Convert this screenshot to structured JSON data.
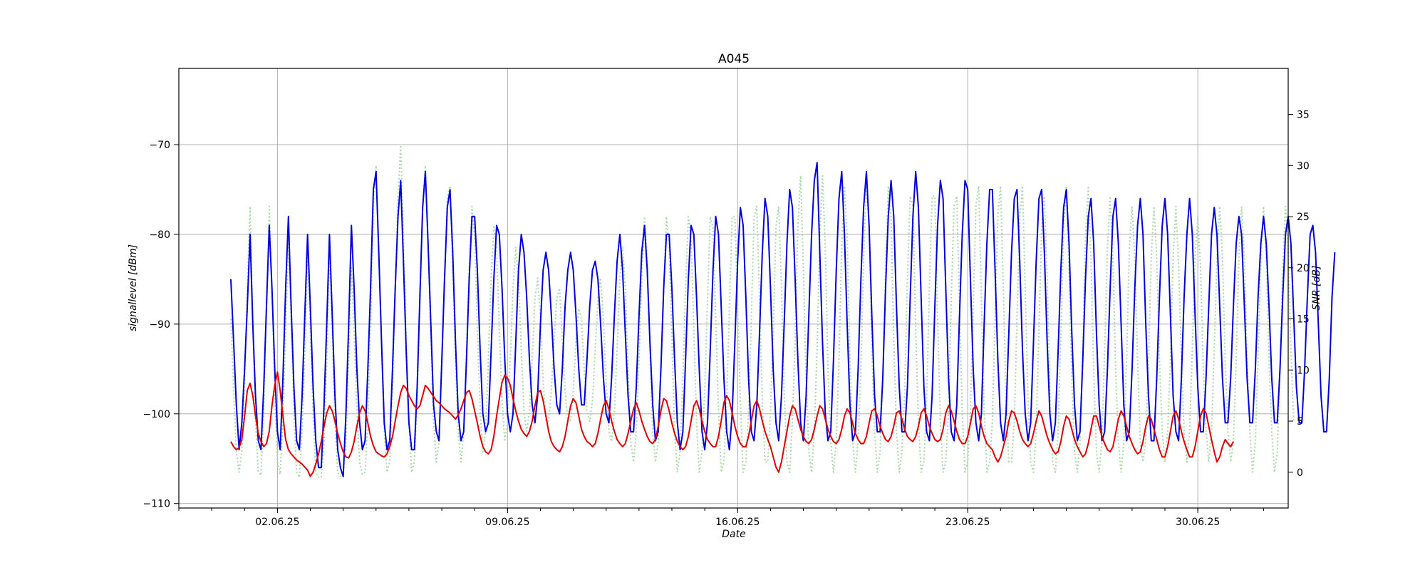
{
  "chart_data": {
    "type": "line",
    "title": "A045",
    "xlabel": "Date",
    "ylabel_left": "signallevel [dBm]",
    "ylabel_right": "SNR [dB]",
    "x_range": [
      "2025-05-30T00:00",
      "2025-07-02T18:00"
    ],
    "x_ticks": [
      "02.06.25",
      "09.06.25",
      "16.06.25",
      "23.06.25",
      "30.06.25"
    ],
    "ylim_left": [
      -110.5,
      -61.5
    ],
    "ylim_right": [
      -3.5,
      39.5
    ],
    "yticks_left": [
      -110,
      -100,
      -90,
      -80,
      -70
    ],
    "yticks_right": [
      0,
      5,
      10,
      15,
      20,
      25,
      30,
      35
    ],
    "grid": true,
    "legend": "none",
    "series": [
      {
        "axis": "left",
        "color": "#0000dd",
        "style": "solid",
        "sample_interval_hours": 2,
        "start": "2025-05-31T14:00",
        "values": [
          -85,
          -92,
          -99,
          -104,
          -101,
          -95,
          -88,
          -80,
          -90,
          -98,
          -103,
          -104,
          -97,
          -88,
          -79,
          -86,
          -95,
          -102,
          -104,
          -96,
          -86,
          -78,
          -88,
          -97,
          -103,
          -104,
          -98,
          -89,
          -80,
          -88,
          -97,
          -103,
          -106,
          -106,
          -99,
          -90,
          -80,
          -89,
          -98,
          -104,
          -106,
          -107,
          -100,
          -90,
          -79,
          -86,
          -95,
          -101,
          -104,
          -103,
          -95,
          -86,
          -75,
          -73,
          -82,
          -92,
          -101,
          -104,
          -103,
          -95,
          -86,
          -78,
          -74,
          -83,
          -93,
          -101,
          -104,
          -104,
          -97,
          -87,
          -77,
          -73,
          -81,
          -90,
          -99,
          -102,
          -103,
          -94,
          -85,
          -77,
          -75,
          -82,
          -92,
          -100,
          -103,
          -102,
          -94,
          -85,
          -78,
          -78,
          -84,
          -93,
          -100,
          -102,
          -101,
          -93,
          -85,
          -79,
          -80,
          -86,
          -94,
          -100,
          -102,
          -100,
          -92,
          -84,
          -80,
          -82,
          -87,
          -94,
          -99,
          -101,
          -98,
          -90,
          -84,
          -82,
          -84,
          -89,
          -95,
          -99,
          -100,
          -95,
          -88,
          -84,
          -82,
          -84,
          -89,
          -95,
          -99,
          -99,
          -94,
          -88,
          -84,
          -83,
          -85,
          -90,
          -96,
          -100,
          -101,
          -96,
          -89,
          -83,
          -80,
          -84,
          -91,
          -98,
          -102,
          -102,
          -97,
          -89,
          -82,
          -79,
          -84,
          -92,
          -99,
          -103,
          -102,
          -95,
          -86,
          -80,
          -80,
          -86,
          -94,
          -101,
          -104,
          -102,
          -94,
          -85,
          -79,
          -80,
          -87,
          -95,
          -102,
          -104,
          -101,
          -93,
          -84,
          -78,
          -80,
          -88,
          -96,
          -102,
          -104,
          -100,
          -92,
          -83,
          -77,
          -79,
          -87,
          -96,
          -102,
          -103,
          -99,
          -91,
          -82,
          -76,
          -78,
          -86,
          -95,
          -101,
          -103,
          -98,
          -90,
          -81,
          -75,
          -77,
          -85,
          -94,
          -101,
          -103,
          -98,
          -89,
          -80,
          -74,
          -72,
          -82,
          -92,
          -100,
          -103,
          -102,
          -94,
          -84,
          -76,
          -73,
          -80,
          -90,
          -99,
          -103,
          -102,
          -95,
          -85,
          -77,
          -73,
          -79,
          -89,
          -98,
          -102,
          -102,
          -96,
          -86,
          -78,
          -74,
          -78,
          -88,
          -97,
          -102,
          -102,
          -97,
          -87,
          -78,
          -73,
          -77,
          -87,
          -97,
          -102,
          -103,
          -98,
          -88,
          -79,
          -74,
          -76,
          -86,
          -96,
          -102,
          -103,
          -99,
          -89,
          -80,
          -74,
          -75,
          -85,
          -95,
          -101,
          -103,
          -100,
          -90,
          -81,
          -75,
          -75,
          -84,
          -94,
          -101,
          -103,
          -100,
          -91,
          -82,
          -76,
          -75,
          -83,
          -93,
          -100,
          -103,
          -101,
          -92,
          -83,
          -76,
          -75,
          -82,
          -92,
          -100,
          -103,
          -101,
          -93,
          -84,
          -77,
          -75,
          -81,
          -91,
          -99,
          -103,
          -102,
          -94,
          -85,
          -78,
          -76,
          -81,
          -91,
          -99,
          -103,
          -102,
          -95,
          -86,
          -78,
          -76,
          -81,
          -90,
          -99,
          -103,
          -102,
          -95,
          -86,
          -79,
          -76,
          -80,
          -90,
          -98,
          -103,
          -103,
          -96,
          -87,
          -79,
          -76,
          -80,
          -89,
          -98,
          -102,
          -103,
          -96,
          -87,
          -80,
          -76,
          -80,
          -89,
          -97,
          -102,
          -102,
          -96,
          -88,
          -80,
          -77,
          -80,
          -88,
          -96,
          -101,
          -101,
          -96,
          -88,
          -81,
          -78,
          -80,
          -88,
          -96,
          -101,
          -101,
          -95,
          -87,
          -81,
          -78,
          -81,
          -88,
          -96,
          -101,
          -101,
          -95,
          -87,
          -80,
          -78,
          -81,
          -89,
          -97,
          -101,
          -101,
          -95,
          -87,
          -80,
          -79,
          -82,
          -90,
          -98,
          -102,
          -102,
          -96,
          -87,
          -82
        ]
      },
      {
        "axis": "right",
        "color": "#e00000",
        "style": "solid",
        "sample_interval_hours": 2,
        "start": "2025-05-31T14:00",
        "values": [
          3.0,
          2.5,
          2.2,
          2.4,
          3.2,
          5.5,
          8.0,
          8.7,
          7.5,
          5.5,
          3.8,
          3.0,
          2.5,
          2.8,
          4.0,
          6.5,
          8.5,
          9.8,
          8.0,
          5.5,
          3.2,
          2.2,
          1.8,
          1.5,
          1.2,
          1.0,
          0.8,
          0.5,
          0.2,
          -0.4,
          0.0,
          0.8,
          1.8,
          3.0,
          4.5,
          5.8,
          6.5,
          6.0,
          5.0,
          3.8,
          2.8,
          2.0,
          1.5,
          1.4,
          2.0,
          3.0,
          4.5,
          5.8,
          6.5,
          6.0,
          4.8,
          3.5,
          2.6,
          2.0,
          1.8,
          1.6,
          1.5,
          1.8,
          2.5,
          3.5,
          5.0,
          6.5,
          7.8,
          8.5,
          8.2,
          7.5,
          7.0,
          6.5,
          6.2,
          6.5,
          7.5,
          8.5,
          8.2,
          7.8,
          7.4,
          7.0,
          6.8,
          6.5,
          6.2,
          6.0,
          5.8,
          5.5,
          5.2,
          5.6,
          6.2,
          7.0,
          7.8,
          8.0,
          7.2,
          6.0,
          4.8,
          3.5,
          2.5,
          2.0,
          1.8,
          2.2,
          3.5,
          5.5,
          7.2,
          8.8,
          9.5,
          9.2,
          8.5,
          7.2,
          6.0,
          5.0,
          4.2,
          3.8,
          3.5,
          4.0,
          5.0,
          6.5,
          7.8,
          8.0,
          7.0,
          5.5,
          4.0,
          3.0,
          2.5,
          2.2,
          2.0,
          2.5,
          3.5,
          5.0,
          6.5,
          7.2,
          6.8,
          5.5,
          4.2,
          3.5,
          3.0,
          2.8,
          2.5,
          2.8,
          3.8,
          5.2,
          6.5,
          7.0,
          6.2,
          5.0,
          4.0,
          3.2,
          2.8,
          2.5,
          2.8,
          3.8,
          5.0,
          6.2,
          6.8,
          6.0,
          5.0,
          4.2,
          3.5,
          3.0,
          2.8,
          3.2,
          4.5,
          6.0,
          7.2,
          7.0,
          6.0,
          4.8,
          3.8,
          3.0,
          2.5,
          2.2,
          2.5,
          3.5,
          5.0,
          6.5,
          7.0,
          6.2,
          5.0,
          4.0,
          3.2,
          2.8,
          2.5,
          2.5,
          3.5,
          5.0,
          6.8,
          7.5,
          7.0,
          5.8,
          4.5,
          3.5,
          2.8,
          2.5,
          2.5,
          3.5,
          5.0,
          6.5,
          7.0,
          6.2,
          5.0,
          4.0,
          3.2,
          2.5,
          1.5,
          0.5,
          0.0,
          1.0,
          2.5,
          4.0,
          5.5,
          6.5,
          6.2,
          5.2,
          4.2,
          3.5,
          3.0,
          2.8,
          3.2,
          4.2,
          5.5,
          6.5,
          6.2,
          5.2,
          4.2,
          3.5,
          3.0,
          2.8,
          3.2,
          4.2,
          5.5,
          6.2,
          5.8,
          4.8,
          3.8,
          3.2,
          2.8,
          2.8,
          3.5,
          4.8,
          6.0,
          6.2,
          5.5,
          4.5,
          3.8,
          3.2,
          3.0,
          3.5,
          4.5,
          5.8,
          6.0,
          5.2,
          4.2,
          3.5,
          3.2,
          3.0,
          3.5,
          4.5,
          5.8,
          6.2,
          5.5,
          4.5,
          3.8,
          3.2,
          3.0,
          3.2,
          4.2,
          5.8,
          6.5,
          6.0,
          5.0,
          4.0,
          3.2,
          2.8,
          2.8,
          3.5,
          4.8,
          6.2,
          6.5,
          5.8,
          4.5,
          3.5,
          2.8,
          2.5,
          2.2,
          1.5,
          1.0,
          1.5,
          2.5,
          3.5,
          5.0,
          6.0,
          5.8,
          5.0,
          4.0,
          3.2,
          2.8,
          2.5,
          2.8,
          3.8,
          5.0,
          6.0,
          5.5,
          4.5,
          3.5,
          2.8,
          2.2,
          1.8,
          2.0,
          3.0,
          4.5,
          5.5,
          5.2,
          4.2,
          3.2,
          2.5,
          2.0,
          1.5,
          1.8,
          2.8,
          4.2,
          5.5,
          5.5,
          4.5,
          3.5,
          2.8,
          2.2,
          2.0,
          2.5,
          3.8,
          5.2,
          6.0,
          5.5,
          4.5,
          3.5,
          2.8,
          2.2,
          1.8,
          2.0,
          3.0,
          4.5,
          5.5,
          5.2,
          4.2,
          3.2,
          2.2,
          1.5,
          1.5,
          2.5,
          4.0,
          5.5,
          6.0,
          5.2,
          4.0,
          3.0,
          2.2,
          1.5,
          1.5,
          2.5,
          4.0,
          5.5,
          6.2,
          5.8,
          4.5,
          3.2,
          2.0,
          1.0,
          1.5,
          2.5,
          3.2,
          2.8,
          2.5,
          3.0
        ]
      },
      {
        "axis": "right",
        "color": "#a8d8a8",
        "style": "dotted",
        "sample_interval_hours": 2,
        "start": "2025-05-31T14:00",
        "values": [
          15,
          8,
          2,
          0,
          2,
          9,
          18,
          26,
          15,
          5,
          0,
          -0.3,
          6,
          16,
          26,
          18,
          8,
          1,
          -0.2,
          5,
          14,
          23,
          15,
          6,
          0,
          -0.5,
          4,
          12,
          22,
          14,
          6,
          0,
          -0.5,
          -0.5,
          3,
          11,
          22,
          14,
          5,
          0,
          -0.4,
          -0.3,
          3,
          11,
          20,
          14,
          6,
          1,
          -0.2,
          0,
          5,
          14,
          26,
          30,
          22,
          12,
          4,
          0,
          1,
          8,
          18,
          27,
          32,
          23,
          13,
          5,
          0,
          1,
          7,
          16,
          26,
          30,
          22,
          13,
          5,
          1,
          3,
          10,
          19,
          27,
          28,
          20,
          11,
          4,
          1,
          4,
          12,
          20,
          26,
          23,
          14,
          6,
          2,
          4,
          11,
          19,
          24,
          22,
          14,
          7,
          3,
          5,
          11,
          18,
          22,
          19,
          12,
          6,
          4,
          6,
          11,
          17,
          19,
          15,
          9,
          5,
          5,
          8,
          13,
          17,
          18,
          13,
          8,
          5,
          5,
          8,
          13,
          16,
          15,
          10,
          6,
          5,
          7,
          12,
          17,
          19,
          15,
          9,
          4,
          3,
          6,
          12,
          19,
          22,
          18,
          10,
          3,
          1,
          4,
          11,
          19,
          25,
          21,
          12,
          4,
          1,
          3,
          10,
          18,
          25,
          22,
          13,
          4,
          0,
          2,
          9,
          18,
          25,
          23,
          14,
          5,
          0,
          2,
          8,
          17,
          25,
          24,
          15,
          6,
          0,
          1,
          7,
          16,
          25,
          25,
          16,
          7,
          0,
          1,
          6,
          15,
          25,
          26,
          17,
          7,
          1,
          1,
          6,
          14,
          24,
          26,
          18,
          8,
          1,
          0,
          5,
          13,
          24,
          29,
          20,
          9,
          2,
          0,
          4,
          12,
          23,
          29,
          22,
          10,
          3,
          0,
          3,
          11,
          22,
          28,
          23,
          11,
          3,
          0,
          3,
          10,
          21,
          28,
          24,
          12,
          4,
          0,
          2,
          9,
          20,
          28,
          25,
          13,
          4,
          0,
          2,
          8,
          19,
          27,
          26,
          14,
          5,
          0,
          1,
          7,
          18,
          27,
          27,
          15,
          5,
          0,
          1,
          6,
          17,
          26,
          27,
          16,
          6,
          0,
          1,
          6,
          16,
          26,
          28,
          17,
          6,
          0,
          1,
          5,
          15,
          25,
          28,
          18,
          7,
          1,
          1,
          5,
          15,
          25,
          28,
          18,
          7,
          1,
          0,
          4,
          14,
          24,
          27,
          19,
          8,
          1,
          0,
          4,
          13,
          24,
          28,
          20,
          9,
          2,
          0,
          3,
          12,
          23,
          28,
          21,
          10,
          2,
          0,
          3,
          12,
          22,
          27,
          21,
          10,
          3,
          0,
          3,
          11,
          22,
          26,
          21,
          11,
          3,
          1,
          3,
          11,
          21,
          26,
          21,
          11,
          4,
          1,
          4,
          11,
          21,
          26,
          20,
          11,
          4,
          1,
          4,
          12,
          21,
          25,
          20,
          10,
          4,
          1,
          4,
          12,
          21,
          26,
          21,
          11,
          4,
          1,
          3,
          11,
          21,
          26,
          21,
          11,
          4,
          0,
          3,
          11,
          21,
          26,
          21,
          11,
          4,
          0,
          2,
          10,
          20,
          26,
          22,
          12,
          5
        ]
      }
    ]
  }
}
